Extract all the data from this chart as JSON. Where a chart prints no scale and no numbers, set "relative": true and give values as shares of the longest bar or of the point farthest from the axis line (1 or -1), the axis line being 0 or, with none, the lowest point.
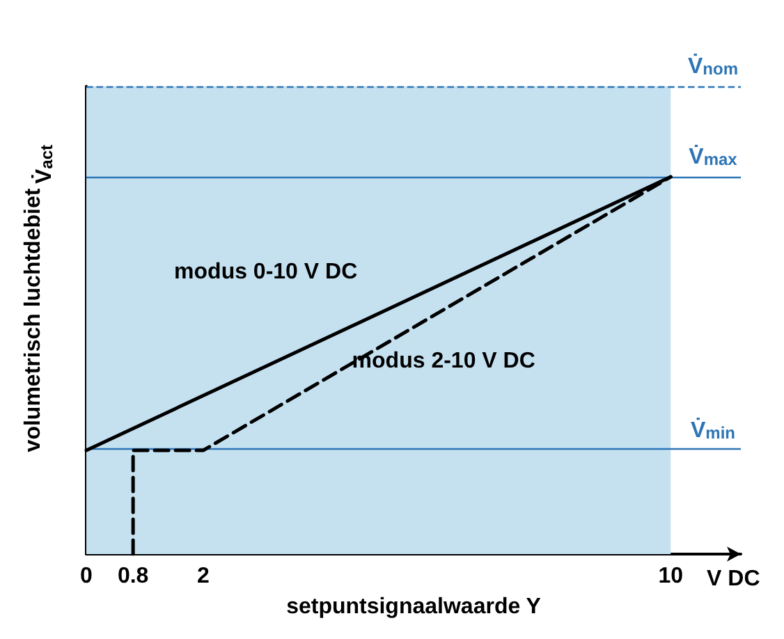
{
  "chart_data": {
    "type": "line",
    "relative": true,
    "xlabel": "setpuntsignaalwaarde Y",
    "ylabel": "volumetrisch luchtdebiet",
    "xlim": [
      0,
      11.2
    ],
    "xticks": [
      0,
      0.8,
      2,
      10
    ],
    "grid": false,
    "marker": "none",
    "series": [
      {
        "name": "modus 0-10 V DC",
        "color": "#000000",
        "line_style": "solid",
        "x": [
          0,
          10
        ],
        "values": [
          0.275,
          1
        ]
      },
      {
        "name": "modus 2-10 V DC",
        "color": "#000000",
        "line_style": "dashed",
        "x": [
          0.8,
          0.8,
          2,
          10
        ],
        "values": [
          0,
          0.275,
          0.275,
          1
        ]
      }
    ],
    "ref_lines": [
      {
        "axis": "y",
        "value": 1.24,
        "label": "V̇$_{nom}$",
        "color": "#2e75b6",
        "line_style": "dashed"
      },
      {
        "axis": "y",
        "value": 1,
        "label": "V̇$_{max}$",
        "color": "#2e75b6",
        "line_style": "solid"
      },
      {
        "axis": "y",
        "value": 0.275,
        "label": "V̇$_{min}$",
        "color": "#2e75b6",
        "line_style": "solid"
      }
    ],
    "bands": [
      {
        "axis": "x",
        "from": 0,
        "to": 10,
        "color": "#c5e1f0"
      }
    ],
    "annotations": [
      "V DC",
      "V̇$_{act}$"
    ]
  }
}
